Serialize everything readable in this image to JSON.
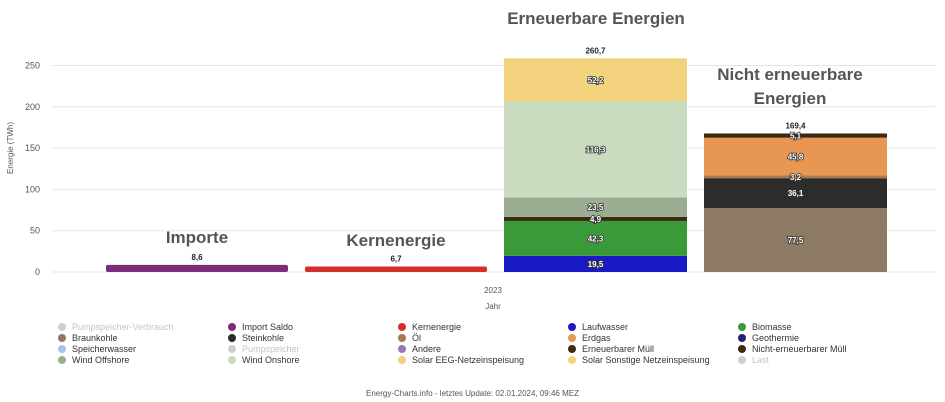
{
  "chart_data": {
    "type": "bar",
    "stacked": true,
    "xtick": "2023",
    "xlabel": "Jahr",
    "ylabel": "Energie (TWh)",
    "ylim": [
      0,
      260
    ],
    "yticks": [
      0,
      50,
      100,
      150,
      200,
      250
    ],
    "grid": true,
    "groups": [
      {
        "label": "Importe",
        "total": "8,6",
        "segments": [
          {
            "name": "Import Saldo",
            "value": 8.6,
            "color": "#7b2d7a",
            "label": ""
          }
        ]
      },
      {
        "label": "Kernenergie",
        "total": "6,7",
        "segments": [
          {
            "name": "Kernenergie",
            "value": 6.7,
            "color": "#d62f2b",
            "label": ""
          }
        ]
      },
      {
        "label": "Erneuerbare Energien",
        "total": "260,7",
        "segments": [
          {
            "name": "Laufwasser",
            "value": 19.5,
            "color": "#1a1ac4",
            "label": "19,5"
          },
          {
            "name": "Biomasse",
            "value": 42.3,
            "color": "#3a9a3a",
            "label": "42,3"
          },
          {
            "name": "Erneuerbarer Müll",
            "value": 4.9,
            "color": "#3d2a0e",
            "label": "4,9"
          },
          {
            "name": "Wind Offshore",
            "value": 23.5,
            "color": "#9cae91",
            "label": "23,5"
          },
          {
            "name": "Wind Onshore",
            "value": 116.3,
            "color": "#c9dcbf",
            "label": "116,3"
          },
          {
            "name": "Solar EEG-Netzeinspeisung",
            "value": 52.2,
            "color": "#f3d27e",
            "label": "52,2"
          }
        ]
      },
      {
        "label": "Nicht erneuerbare Energien",
        "total": "169,4",
        "segments": [
          {
            "name": "Braunkohle",
            "value": 77.5,
            "color": "#8c7a64",
            "label": "77,5"
          },
          {
            "name": "Steinkohle",
            "value": 36.1,
            "color": "#2c2c2c",
            "label": "36,1"
          },
          {
            "name": "Öl",
            "value": 3.2,
            "color": "#a8794f",
            "label": "3,2"
          },
          {
            "name": "Erdgas",
            "value": 45.8,
            "color": "#e79752",
            "label": "45,8"
          },
          {
            "name": "Nicht-erneuerbarer Müll",
            "value": 5.1,
            "color": "#3d2a0e",
            "label": "5,1"
          }
        ]
      }
    ],
    "legend": [
      {
        "name": "Pumpspeicher-Verbrauch",
        "color": "#cfcfcf",
        "muted": true
      },
      {
        "name": "Import Saldo",
        "color": "#7b2d7a"
      },
      {
        "name": "Kernenergie",
        "color": "#d62f2b"
      },
      {
        "name": "Laufwasser",
        "color": "#1a1ac4"
      },
      {
        "name": "Biomasse",
        "color": "#3a9a3a"
      },
      {
        "name": "Braunkohle",
        "color": "#8c7a64"
      },
      {
        "name": "Steinkohle",
        "color": "#2c2c2c"
      },
      {
        "name": "Öl",
        "color": "#a8794f"
      },
      {
        "name": "Erdgas",
        "color": "#e79752"
      },
      {
        "name": "Geothermie",
        "color": "#24246e"
      },
      {
        "name": "Speicherwasser",
        "color": "#a9c4e8"
      },
      {
        "name": "Pumpspeicher",
        "color": "#cfcfcf",
        "muted": true
      },
      {
        "name": "Andere",
        "color": "#8d80b0"
      },
      {
        "name": "Erneuerbarer Müll",
        "color": "#3d2a0e"
      },
      {
        "name": "Nicht-erneuerbarer Müll",
        "color": "#3d2a0e"
      },
      {
        "name": "Wind Offshore",
        "color": "#9cae91"
      },
      {
        "name": "Wind Onshore",
        "color": "#c9dcbf"
      },
      {
        "name": "Solar EEG-Netzeinspeisung",
        "color": "#f3d27e"
      },
      {
        "name": "Solar Sonstige Netzeinspeisung",
        "color": "#f3d27e"
      },
      {
        "name": "Last",
        "color": "#cfcfcf",
        "muted": true
      }
    ]
  },
  "footer": "Energy-Charts.info - letztes Update: 02.01.2024, 09:46 MEZ"
}
